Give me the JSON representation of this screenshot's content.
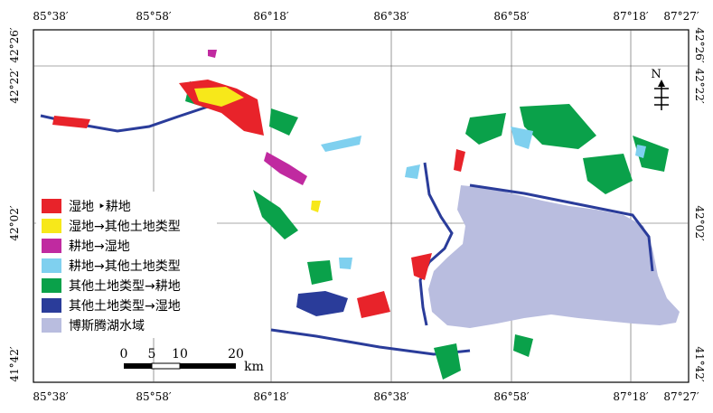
{
  "map": {
    "coords": {
      "top": [
        "85°38′",
        "85°58′",
        "86°18′",
        "86°38′",
        "86°58′",
        "87°18′",
        "87°27′"
      ],
      "bottom": [
        "85°38′",
        "85°58′",
        "86°18′",
        "86°38′",
        "86°58′",
        "87°18′",
        "87°27′"
      ],
      "left": [
        "42°26′",
        "42°22′",
        "42°02′",
        "41°42′"
      ],
      "right": [
        "42°26′",
        "42°22′",
        "42°02′",
        "41°42′"
      ]
    },
    "north_arrow": {
      "label": "N"
    },
    "scale_bar": {
      "ticks": [
        "0",
        "5",
        "10",
        "20"
      ],
      "unit": "km"
    },
    "legend": [
      {
        "label": "湿地 ‣耕地",
        "color": "#e8232a"
      },
      {
        "label": "湿地→其他土地类型",
        "color": "#f7e81a"
      },
      {
        "label": "耕地→湿地",
        "color": "#c02aa0"
      },
      {
        "label": "耕地→其他土地类型",
        "color": "#7fd0ef"
      },
      {
        "label": "其他土地类型→耕地",
        "color": "#0aa14a"
      },
      {
        "label": "其他土地类型→湿地",
        "color": "#2a3c9a"
      },
      {
        "label": "博斯腾湖水域",
        "color": "#b9bddf"
      }
    ]
  }
}
